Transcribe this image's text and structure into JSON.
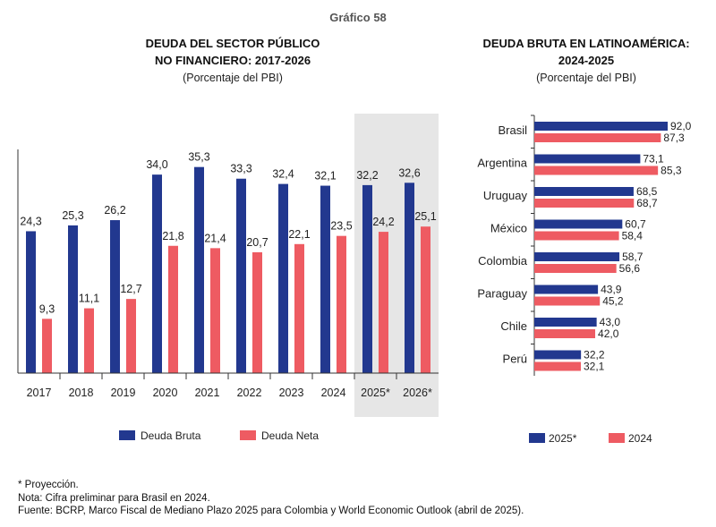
{
  "figure_title": "Gráfico 58",
  "colors": {
    "bruta": "#22388f",
    "neta": "#ee5b62",
    "projection_band": "#e6e6e6",
    "axis": "#333333"
  },
  "chart_data": [
    {
      "type": "bar",
      "title": [
        "DEUDA DEL SECTOR PÚBLICO",
        "NO FINANCIERO: 2017-2026"
      ],
      "subtitle": "(Porcentaje del PBI)",
      "categories": [
        "2017",
        "2018",
        "2019",
        "2020",
        "2021",
        "2022",
        "2023",
        "2024",
        "2025*",
        "2026*"
      ],
      "series": [
        {
          "name": "Deuda Bruta",
          "values": [
            24.3,
            25.3,
            26.2,
            34.0,
            35.3,
            33.3,
            32.4,
            32.1,
            32.2,
            32.6
          ],
          "labels": [
            "24,3",
            "25,3",
            "26,2",
            "34,0",
            "35,3",
            "33,3",
            "32,4",
            "32,1",
            "32,2",
            "32,6"
          ]
        },
        {
          "name": "Deuda Neta",
          "values": [
            9.3,
            11.1,
            12.7,
            21.8,
            21.4,
            20.7,
            22.1,
            23.5,
            24.2,
            25.1
          ],
          "labels": [
            "9,3",
            "11,1",
            "12,7",
            "21,8",
            "21,4",
            "20,7",
            "22,1",
            "23,5",
            "24,2",
            "25,1"
          ]
        }
      ],
      "projection_categories": [
        "2025*",
        "2026*"
      ],
      "ylim": [
        0,
        40
      ],
      "legend": "bottom"
    },
    {
      "type": "bar",
      "orientation": "horizontal",
      "title": [
        "DEUDA BRUTA EN LATINOAMÉRICA:",
        "2024-2025"
      ],
      "subtitle": "(Porcentaje del PBI)",
      "categories": [
        "Brasil",
        "Argentina",
        "Uruguay",
        "México",
        "Colombia",
        "Paraguay",
        "Chile",
        "Perú"
      ],
      "series": [
        {
          "name": "2025*",
          "values": [
            92.0,
            73.1,
            68.5,
            60.7,
            58.7,
            43.9,
            43.0,
            32.2
          ],
          "labels": [
            "92,0",
            "73,1",
            "68,5",
            "60,7",
            "58,7",
            "43,9",
            "43,0",
            "32,2"
          ]
        },
        {
          "name": "2024",
          "values": [
            87.3,
            85.3,
            68.7,
            58.4,
            56.6,
            45.2,
            42.0,
            32.1
          ],
          "labels": [
            "87,3",
            "85,3",
            "68,7",
            "58,4",
            "56,6",
            "45,2",
            "42,0",
            "32,1"
          ]
        }
      ],
      "xlim": [
        0,
        100
      ],
      "legend": "bottom"
    }
  ],
  "notes": [
    "* Proyección.",
    "Nota: Cifra preliminar para Brasil en 2024.",
    "Fuente: BCRP, Marco Fiscal de Mediano Plazo 2025 para Colombia y World Economic Outlook (abril de 2025)."
  ]
}
